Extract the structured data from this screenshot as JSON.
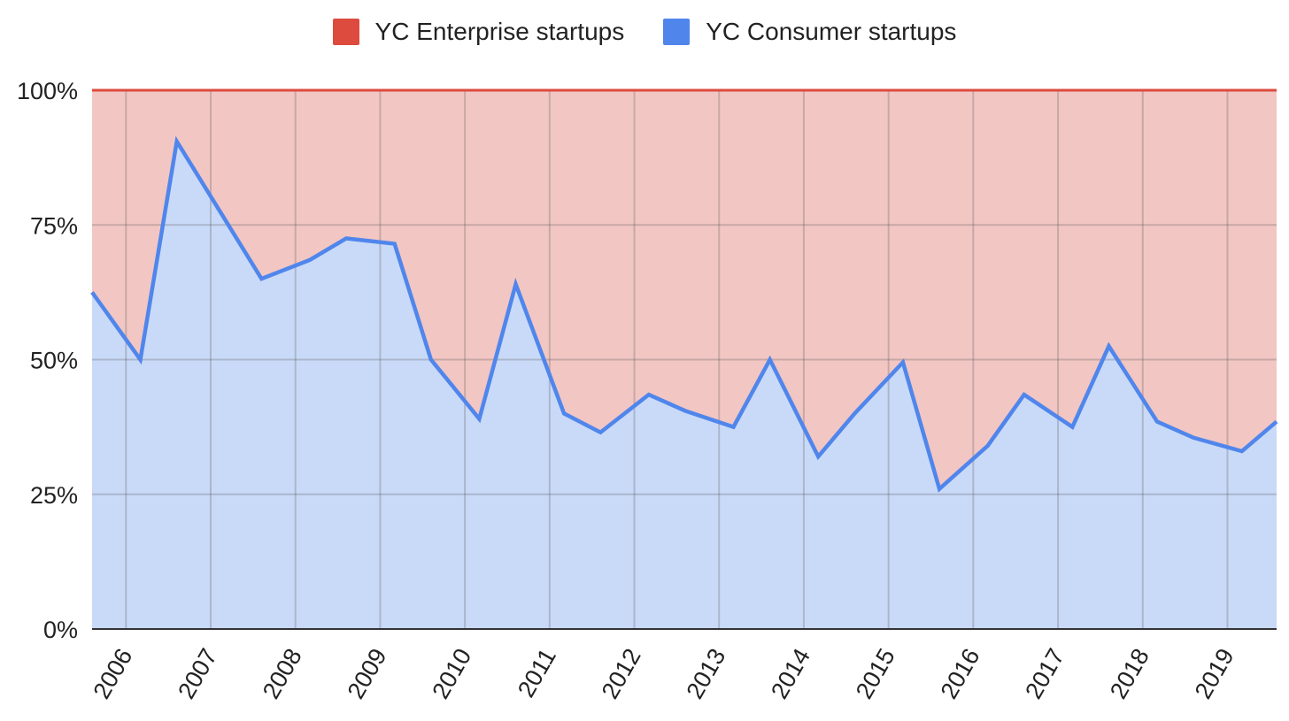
{
  "chart_data": {
    "type": "area",
    "stacked": true,
    "percent": true,
    "legend_position": "top",
    "grid": true,
    "ylim": [
      0,
      100
    ],
    "y_ticks": [
      "0%",
      "25%",
      "50%",
      "75%",
      "100%"
    ],
    "y_tick_values": [
      0,
      25,
      50,
      75,
      100
    ],
    "x_tick_labels": [
      "2006",
      "2007",
      "2008",
      "2009",
      "2010",
      "2011",
      "2012",
      "2013",
      "2014",
      "2015",
      "2016",
      "2017",
      "2018",
      "2019"
    ],
    "x_tick_values": [
      2006,
      2007,
      2008,
      2009,
      2010,
      2011,
      2012,
      2013,
      2014,
      2015,
      2016,
      2017,
      2018,
      2019
    ],
    "xlim": [
      2005.6,
      2019.58
    ],
    "x": [
      2005.6,
      2006.17,
      2006.6,
      2007.6,
      2008.17,
      2008.6,
      2009.17,
      2009.6,
      2010.17,
      2010.6,
      2011.17,
      2011.6,
      2012.17,
      2012.6,
      2013.17,
      2013.6,
      2014.17,
      2014.6,
      2015.17,
      2015.6,
      2016.17,
      2016.6,
      2017.17,
      2017.6,
      2018.17,
      2018.6,
      2019.17,
      2019.58
    ],
    "series": [
      {
        "name": "YC Consumer startups",
        "color": "#5086EC",
        "fill": "#C9DAF8",
        "values": [
          62.5,
          50,
          90.5,
          65,
          68.5,
          72.5,
          71.5,
          50,
          39,
          64,
          40,
          36.5,
          43.5,
          40.5,
          37.5,
          50,
          32,
          40,
          49.5,
          26,
          34,
          43.5,
          37.5,
          52.5,
          38.5,
          35.5,
          33,
          38.5
        ]
      },
      {
        "name": "YC Enterprise startups",
        "color": "#DC4B3E",
        "fill": "#F2C6C3",
        "values": [
          37.5,
          50,
          9.5,
          35,
          31.5,
          27.5,
          28.5,
          50,
          61,
          36,
          60,
          63.5,
          56.5,
          59.5,
          62.5,
          50,
          68,
          60,
          50.5,
          74,
          66,
          56.5,
          62.5,
          47.5,
          61.5,
          64.5,
          67,
          61.5
        ]
      }
    ]
  },
  "legend": {
    "items": [
      {
        "label": "YC Enterprise startups",
        "color": "#DC4B3E"
      },
      {
        "label": "YC Consumer startups",
        "color": "#5086EC"
      }
    ]
  }
}
